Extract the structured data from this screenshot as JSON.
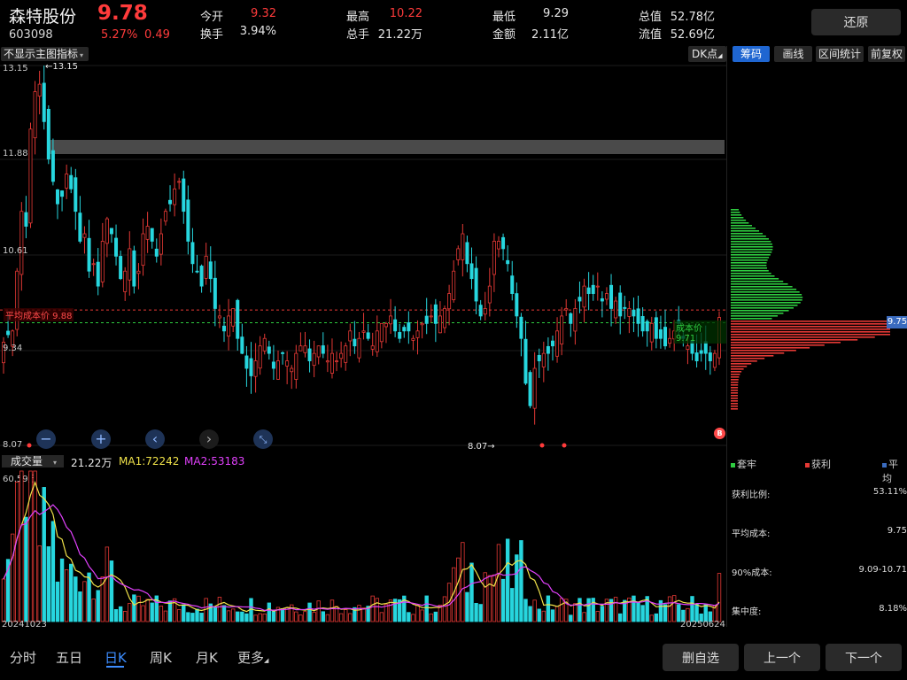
{
  "header": {
    "stock_name": "森特股份",
    "price": "9.78",
    "code": "603098",
    "change_pct": "5.27%",
    "change_amt": "0.49",
    "stats": [
      {
        "label": "今开",
        "value": "9.32",
        "color": "red"
      },
      {
        "label": "换手",
        "value": "3.94%",
        "color": "white"
      },
      {
        "label": "最高",
        "value": "10.22",
        "color": "red"
      },
      {
        "label": "总手",
        "value": "21.22万",
        "color": "white"
      },
      {
        "label": "最低",
        "value": "9.29",
        "color": "white"
      },
      {
        "label": "金额",
        "value": "2.11亿",
        "color": "white"
      },
      {
        "label": "总值",
        "value": "52.78亿",
        "color": "white"
      },
      {
        "label": "流值",
        "value": "52.69亿",
        "color": "white"
      }
    ],
    "restore_button": "还原"
  },
  "main_chart": {
    "indicator_select": "不显示主图指标",
    "dk_button": "DK点",
    "y_labels": [
      "13.15",
      "11.88",
      "10.61",
      "9.34",
      "8.07"
    ],
    "high_marker": "←13.15",
    "low_marker": "8.07→",
    "avg_cost_label": "平均成本价 9.88",
    "cost_price_label": "成本价 9.71",
    "b_badge": "B",
    "nav_buttons": {
      "zoom_out": "−",
      "zoom_in": "+",
      "prev": "‹",
      "next": "›",
      "fit": "⤡"
    }
  },
  "right_panel": {
    "tools": [
      {
        "label": "筹码",
        "active": true
      },
      {
        "label": "画线",
        "active": false
      },
      {
        "label": "区间统计",
        "active": false
      },
      {
        "label": "前复权",
        "active": false
      }
    ],
    "current_price_tag": "9.75",
    "legend": [
      {
        "label": "套牢",
        "color": "#2ecc40"
      },
      {
        "label": "获利",
        "color": "#e53935"
      },
      {
        "label": "平均",
        "color": "#3a6bbf"
      }
    ],
    "cost_stats": [
      {
        "label": "获利比例:",
        "value": "53.11%"
      },
      {
        "label": "平均成本:",
        "value": "9.75"
      },
      {
        "label": "90%成本:",
        "value": "9.09-10.71"
      },
      {
        "label": "集中度:",
        "value": "8.18%"
      }
    ]
  },
  "volume": {
    "select_label": "成交量",
    "total": "21.22万",
    "ma1": "MA1:72242",
    "ma2": "MA2:53183",
    "ma1_color": "#f1e34a",
    "ma2_color": "#e040fb",
    "max_label": "60.59万",
    "start_date": "20241023",
    "end_date": "20250624"
  },
  "bottom_bar": {
    "tabs": [
      {
        "label": "分时",
        "active": false
      },
      {
        "label": "五日",
        "active": false
      },
      {
        "label": "日K",
        "active": true
      },
      {
        "label": "周K",
        "active": false
      },
      {
        "label": "月K",
        "active": false
      },
      {
        "label": "更多",
        "active": false
      }
    ],
    "buttons": [
      "删自选",
      "上一个",
      "下一个"
    ]
  },
  "colors": {
    "up": "#e53935",
    "down": "#27d6de",
    "accent": "#1f66d1",
    "background": "#000000"
  },
  "chart_data": {
    "type": "candlestick",
    "y_range": [
      8.07,
      13.15
    ],
    "close": [
      9.45,
      9.55,
      9.6,
      10.4,
      11.2,
      11.0,
      12.3,
      12.8,
      12.9,
      12.4,
      11.9,
      11.6,
      11.3,
      11.4,
      11.7,
      11.5,
      11.2,
      10.8,
      10.9,
      10.4,
      10.5,
      10.2,
      10.8,
      11.1,
      10.9,
      10.6,
      10.3,
      10.4,
      10.7,
      10.2,
      10.4,
      10.9,
      11.0,
      10.8,
      10.6,
      10.9,
      11.2,
      11.3,
      11.5,
      11.6,
      11.2,
      10.8,
      10.5,
      10.4,
      10.2,
      10.6,
      10.3,
      9.9,
      9.8,
      9.6,
      9.8,
      9.9,
      9.5,
      9.3,
      9.1,
      9.0,
      9.2,
      9.4,
      9.5,
      9.3,
      9.1,
      9.2,
      9.3,
      9.2,
      9.1,
      9.3,
      9.4,
      9.4,
      9.2,
      9.3,
      9.4,
      9.3,
      9.2,
      9.3,
      9.2,
      9.3,
      9.4,
      9.6,
      9.4,
      9.5,
      9.6,
      9.5,
      9.4,
      9.6,
      9.7,
      9.7,
      9.8,
      9.6,
      9.5,
      9.6,
      9.6,
      9.5,
      9.6,
      9.7,
      9.7,
      9.8,
      9.7,
      9.8,
      9.9,
      10.1,
      10.4,
      10.7,
      10.9,
      10.5,
      10.3,
      10.0,
      9.8,
      9.9,
      10.2,
      10.8,
      10.8,
      10.7,
      10.5,
      10.1,
      9.8,
      9.5,
      8.9,
      8.6,
      9.1,
      9.2,
      9.3,
      9.3,
      9.4,
      9.6,
      9.8,
      9.9,
      9.7,
      9.9,
      10.0,
      10.2,
      10.1,
      10.1,
      10.2,
      10.0,
      10.1,
      9.9,
      10.0,
      9.8,
      9.9,
      9.9,
      9.8,
      9.7,
      9.6,
      9.6,
      9.7,
      9.5,
      9.5,
      9.4,
      9.5,
      9.6,
      9.7,
      9.5,
      9.4,
      9.3,
      9.2,
      9.3,
      9.3,
      9.2,
      9.3,
      9.78
    ]
  }
}
